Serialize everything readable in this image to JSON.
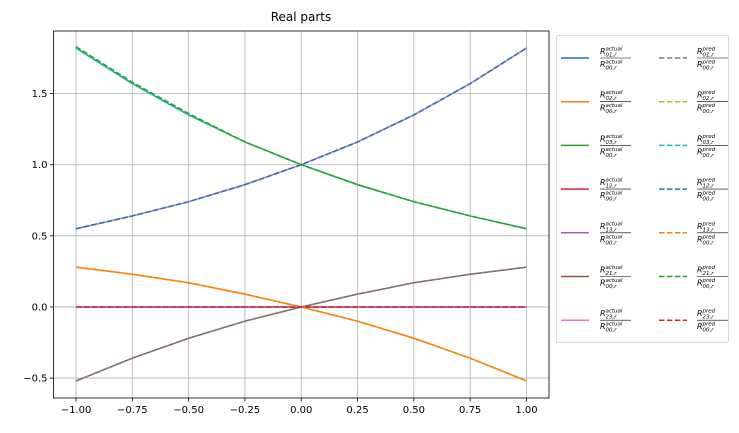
{
  "chart_data": {
    "type": "line",
    "title": "Real parts",
    "x": [
      -1,
      -0.75,
      -0.5,
      -0.25,
      0,
      0.25,
      0.5,
      0.75,
      1
    ],
    "xlim": [
      -1.1,
      1.1
    ],
    "xticks": [
      {
        "value": -1,
        "label": "−1.00"
      },
      {
        "value": -0.75,
        "label": "−0.75"
      },
      {
        "value": -0.5,
        "label": "−0.50"
      },
      {
        "value": -0.25,
        "label": "−0.25"
      },
      {
        "value": 0,
        "label": "0.00"
      },
      {
        "value": 0.25,
        "label": "0.25"
      },
      {
        "value": 0.5,
        "label": "0.50"
      },
      {
        "value": 0.75,
        "label": "0.75"
      },
      {
        "value": 1,
        "label": "1.00"
      }
    ],
    "ylim": [
      -0.64,
      1.94
    ],
    "yticks": [
      {
        "value": -0.5,
        "label": "−0.5"
      },
      {
        "value": 0,
        "label": "0.0"
      },
      {
        "value": 0.5,
        "label": "0.5"
      },
      {
        "value": 1,
        "label": "1.0"
      },
      {
        "value": 1.5,
        "label": "1.5"
      }
    ],
    "grid": true,
    "legend": "outside right",
    "series": [
      {
        "name": {
          "numerator": {
            "symbol": "R",
            "sub": "01,r",
            "sup": "actual"
          },
          "denominator": {
            "symbol": "R",
            "sub": "00,r",
            "sup": "actual"
          }
        },
        "color": "#1f77b4",
        "dash": false,
        "values": [
          0.55,
          0.64,
          0.74,
          0.86,
          1.0,
          1.16,
          1.35,
          1.57,
          1.82
        ]
      },
      {
        "name": {
          "numerator": {
            "symbol": "R",
            "sub": "02,r",
            "sup": "actual"
          },
          "denominator": {
            "symbol": "R",
            "sub": "00,r",
            "sup": "actual"
          }
        },
        "color": "#ff7f0e",
        "dash": false,
        "values": [
          0.28,
          0.23,
          0.17,
          0.09,
          0,
          -0.1,
          -0.22,
          -0.36,
          -0.52
        ]
      },
      {
        "name": {
          "numerator": {
            "symbol": "R",
            "sub": "03,r",
            "sup": "actual"
          },
          "denominator": {
            "symbol": "R",
            "sub": "00,r",
            "sup": "actual"
          }
        },
        "color": "#2ca02c",
        "dash": false,
        "values": [
          1.82,
          1.57,
          1.35,
          1.16,
          1.0,
          0.86,
          0.74,
          0.64,
          0.55
        ]
      },
      {
        "name": {
          "numerator": {
            "symbol": "R",
            "sub": "12,r",
            "sup": "actual"
          },
          "denominator": {
            "symbol": "R",
            "sub": "00,r",
            "sup": "actual"
          }
        },
        "color": "#d62728",
        "dash": false,
        "values": [
          0,
          0,
          0,
          0,
          0,
          0,
          0,
          0,
          0
        ]
      },
      {
        "name": {
          "numerator": {
            "symbol": "R",
            "sub": "13,r",
            "sup": "actual"
          },
          "denominator": {
            "symbol": "R",
            "sub": "00,r",
            "sup": "actual"
          }
        },
        "color": "#9467bd",
        "dash": false,
        "values": [
          0,
          0,
          0,
          0,
          0,
          0,
          0,
          0,
          0
        ]
      },
      {
        "name": {
          "numerator": {
            "symbol": "R",
            "sub": "21,r",
            "sup": "actual"
          },
          "denominator": {
            "symbol": "R",
            "sub": "00,r",
            "sup": "actual"
          }
        },
        "color": "#8c564b",
        "dash": false,
        "values": [
          -0.52,
          -0.36,
          -0.22,
          -0.1,
          0,
          0.09,
          0.17,
          0.23,
          0.28
        ]
      },
      {
        "name": {
          "numerator": {
            "symbol": "R",
            "sub": "23,r",
            "sup": "actual"
          },
          "denominator": {
            "symbol": "R",
            "sub": "00,r",
            "sup": "actual"
          }
        },
        "color": "#e377c2",
        "dash": false,
        "values": [
          0.55,
          0.64,
          0.74,
          0.86,
          1.0,
          1.16,
          1.35,
          1.57,
          1.82
        ]
      },
      {
        "name": {
          "numerator": {
            "symbol": "R",
            "sub": "01,r",
            "sup": "pred"
          },
          "denominator": {
            "symbol": "R",
            "sub": "00,r",
            "sup": "pred"
          }
        },
        "color": "#7f7f7f",
        "dash": true,
        "values": [
          -0.52,
          -0.36,
          -0.22,
          -0.1,
          0,
          0.09,
          0.17,
          0.23,
          0.28
        ]
      },
      {
        "name": {
          "numerator": {
            "symbol": "R",
            "sub": "02,r",
            "sup": "pred"
          },
          "denominator": {
            "symbol": "R",
            "sub": "00,r",
            "sup": "pred"
          }
        },
        "color": "#bcbd22",
        "dash": true,
        "values": [
          0.28,
          0.23,
          0.17,
          0.09,
          0,
          -0.1,
          -0.22,
          -0.36,
          -0.52
        ]
      },
      {
        "name": {
          "numerator": {
            "symbol": "R",
            "sub": "03,r",
            "sup": "pred"
          },
          "denominator": {
            "symbol": "R",
            "sub": "00,r",
            "sup": "pred"
          }
        },
        "color": "#17becf",
        "dash": true,
        "values": [
          1.82,
          1.57,
          1.35,
          1.16,
          1.0,
          0.86,
          0.74,
          0.64,
          0.55
        ]
      },
      {
        "name": {
          "numerator": {
            "symbol": "R",
            "sub": "12,r",
            "sup": "pred"
          },
          "denominator": {
            "symbol": "R",
            "sub": "00,r",
            "sup": "pred"
          }
        },
        "color": "#1f77b4",
        "dash": true,
        "values": [
          0.55,
          0.64,
          0.74,
          0.86,
          1.0,
          1.16,
          1.35,
          1.57,
          1.82
        ]
      },
      {
        "name": {
          "numerator": {
            "symbol": "R",
            "sub": "13,r",
            "sup": "pred"
          },
          "denominator": {
            "symbol": "R",
            "sub": "00,r",
            "sup": "pred"
          }
        },
        "color": "#ff7f0e",
        "dash": true,
        "values": [
          0.28,
          0.23,
          0.17,
          0.09,
          0,
          -0.1,
          -0.22,
          -0.36,
          -0.52
        ]
      },
      {
        "name": {
          "numerator": {
            "symbol": "R",
            "sub": "21,r",
            "sup": "pred"
          },
          "denominator": {
            "symbol": "R",
            "sub": "00,r",
            "sup": "pred"
          }
        },
        "color": "#2ca02c",
        "dash": true,
        "values": [
          1.83,
          1.58,
          1.36,
          1.16,
          1.0,
          0.86,
          0.74,
          0.64,
          0.55
        ]
      },
      {
        "name": {
          "numerator": {
            "symbol": "R",
            "sub": "23,r",
            "sup": "pred"
          },
          "denominator": {
            "symbol": "R",
            "sub": "00,r",
            "sup": "pred"
          }
        },
        "color": "#d62728",
        "dash": true,
        "values": [
          0,
          0,
          0,
          0,
          0,
          0,
          0,
          0,
          0
        ]
      }
    ]
  }
}
